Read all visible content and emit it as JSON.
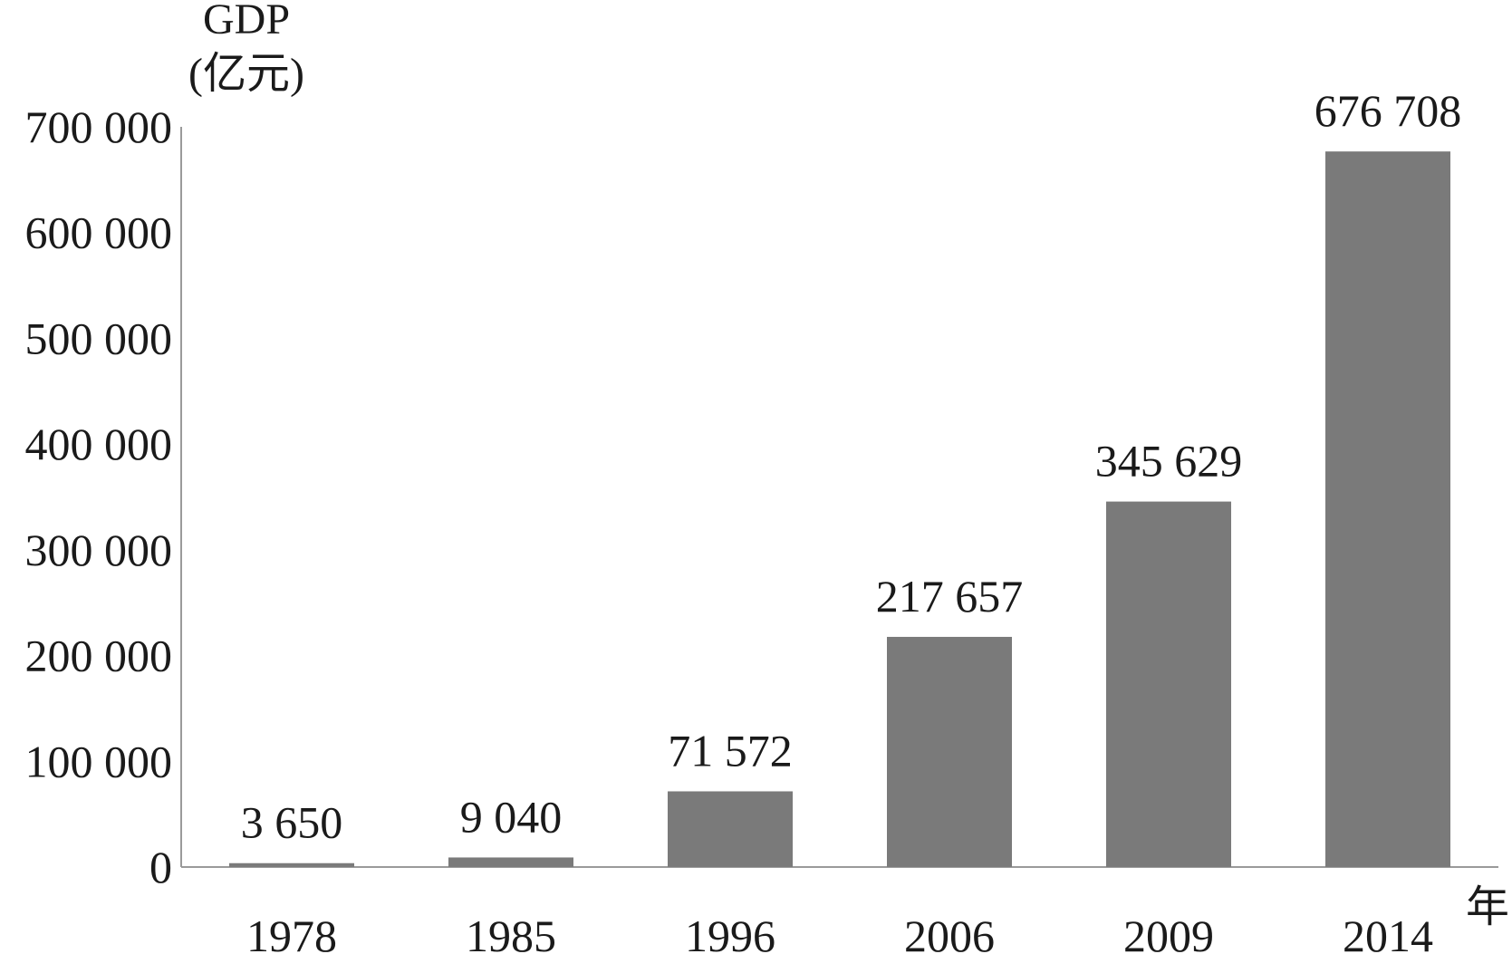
{
  "chart_data": {
    "type": "bar",
    "title": "",
    "ylabel_line1": "GDP",
    "ylabel_line2": "(亿元)",
    "xlabel": "年",
    "categories": [
      "1978",
      "1985",
      "1996",
      "2006",
      "2009",
      "2014"
    ],
    "values": [
      3650,
      9040,
      71572,
      217657,
      345629,
      676708
    ],
    "value_labels": [
      "3 650",
      "9 040",
      "71 572",
      "217 657",
      "345 629",
      "676 708"
    ],
    "ylim": [
      0,
      700000
    ],
    "yticks": [
      0,
      100000,
      200000,
      300000,
      400000,
      500000,
      600000,
      700000
    ],
    "ytick_labels": [
      "0",
      "100 000",
      "200 000",
      "300 000",
      "400 000",
      "500 000",
      "600 000",
      "700 000"
    ],
    "grid": false,
    "legend": "none",
    "bar_color": "#7a7a7a",
    "axis_color": "#9a9a9a"
  }
}
